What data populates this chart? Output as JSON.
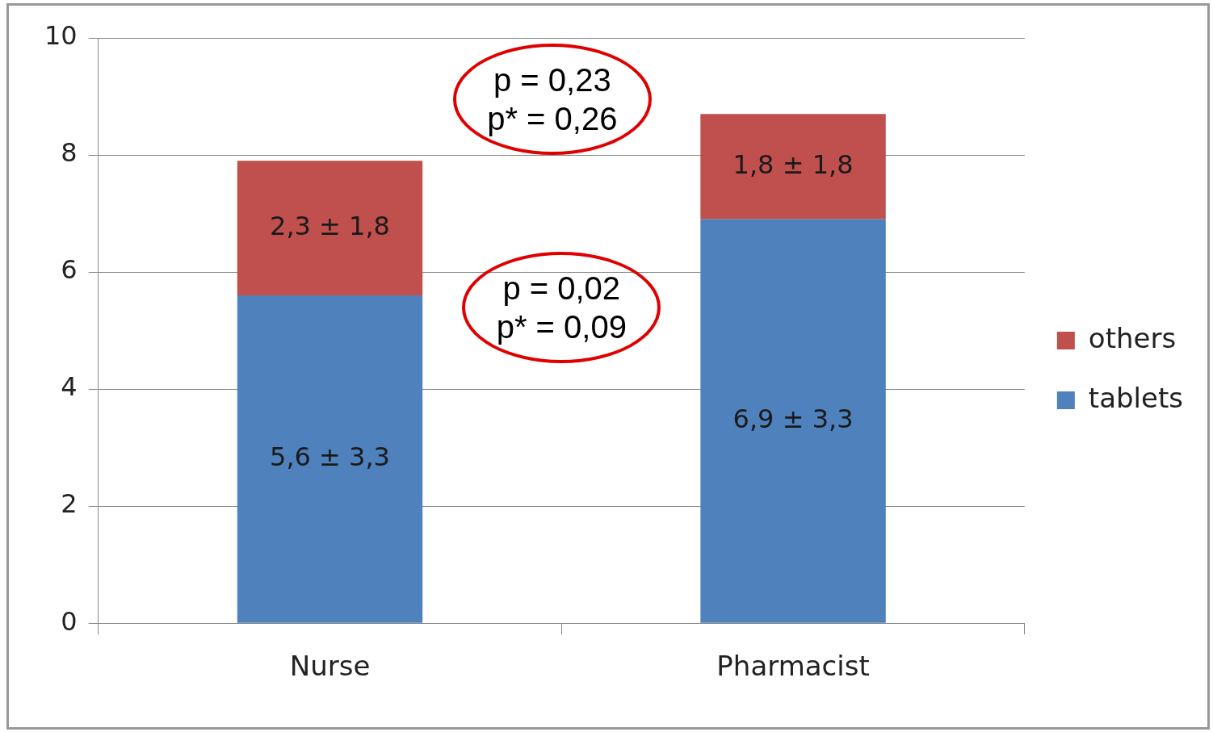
{
  "chart_data": {
    "type": "bar",
    "stacked": true,
    "categories": [
      "Nurse",
      "Pharmacist"
    ],
    "series": [
      {
        "name": "tablets",
        "color": "#4f81bd",
        "values": [
          5.6,
          6.9
        ],
        "value_labels": [
          "5,6 ± 3,3",
          "6,9 ± 3,3"
        ]
      },
      {
        "name": "others",
        "color": "#c0504d",
        "values": [
          2.3,
          1.8
        ],
        "value_labels": [
          "2,3 ± 1,8",
          "1,8 ± 1,8"
        ]
      }
    ],
    "ylim": [
      0,
      10
    ],
    "yticks": [
      0,
      2,
      4,
      6,
      8,
      10
    ],
    "grid": "y",
    "legend": "right",
    "annotations": [
      "p = 0,23\np* = 0,26",
      "p = 0,02\np* = 0,09"
    ]
  }
}
